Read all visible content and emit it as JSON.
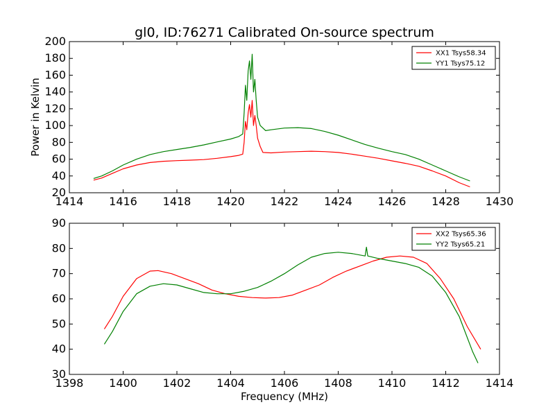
{
  "title": "gl0, ID:76271 Calibrated On-source spectrum",
  "colors": {
    "xx": "#ff0000",
    "yy": "#008000"
  },
  "chart_data": [
    {
      "type": "line",
      "title": "gl0, ID:76271 Calibrated On-source spectrum",
      "xlabel": "",
      "ylabel": "Power in Kelvin",
      "xlim": [
        1414,
        1430
      ],
      "ylim": [
        20,
        200
      ],
      "xticks": [
        "1414",
        "1416",
        "1418",
        "1420",
        "1422",
        "1424",
        "1426",
        "1428",
        "1430"
      ],
      "yticks": [
        "20",
        "40",
        "60",
        "80",
        "100",
        "120",
        "140",
        "160",
        "180",
        "200"
      ],
      "legend_position": "top-right",
      "series": [
        {
          "name": "XX1 Tsys58.34",
          "color": "#ff0000",
          "points": [
            [
              1414.9,
              35
            ],
            [
              1415.2,
              37.5
            ],
            [
              1415.6,
              43
            ],
            [
              1416.0,
              48.5
            ],
            [
              1416.5,
              53
            ],
            [
              1417.0,
              56
            ],
            [
              1417.5,
              57.5
            ],
            [
              1418.0,
              58.2
            ],
            [
              1418.5,
              58.8
            ],
            [
              1419.0,
              59.5
            ],
            [
              1419.5,
              61
            ],
            [
              1420.0,
              63
            ],
            [
              1420.3,
              64.5
            ],
            [
              1420.45,
              66
            ],
            [
              1420.5,
              80
            ],
            [
              1420.55,
              105
            ],
            [
              1420.6,
              95
            ],
            [
              1420.65,
              115
            ],
            [
              1420.7,
              125
            ],
            [
              1420.75,
              110
            ],
            [
              1420.8,
              130
            ],
            [
              1420.85,
              100
            ],
            [
              1420.9,
              112
            ],
            [
              1420.95,
              100
            ],
            [
              1421.0,
              85
            ],
            [
              1421.1,
              75
            ],
            [
              1421.2,
              68
            ],
            [
              1421.5,
              67.5
            ],
            [
              1422.0,
              68.5
            ],
            [
              1422.5,
              69
            ],
            [
              1423.0,
              69.5
            ],
            [
              1423.5,
              69
            ],
            [
              1424.0,
              68
            ],
            [
              1424.5,
              66
            ],
            [
              1425.0,
              63.5
            ],
            [
              1425.5,
              61
            ],
            [
              1426.0,
              58
            ],
            [
              1426.5,
              55
            ],
            [
              1427.0,
              51.5
            ],
            [
              1427.5,
              46
            ],
            [
              1428.0,
              40
            ],
            [
              1428.5,
              32
            ],
            [
              1428.9,
              27
            ]
          ]
        },
        {
          "name": "YY1 Tsys75.12",
          "color": "#008000",
          "points": [
            [
              1414.9,
              37
            ],
            [
              1415.2,
              40
            ],
            [
              1415.6,
              46
            ],
            [
              1416.0,
              53
            ],
            [
              1416.5,
              60
            ],
            [
              1417.0,
              65.5
            ],
            [
              1417.5,
              69
            ],
            [
              1418.0,
              71.5
            ],
            [
              1418.5,
              74
            ],
            [
              1419.0,
              77
            ],
            [
              1419.5,
              80.5
            ],
            [
              1420.0,
              84
            ],
            [
              1420.3,
              87
            ],
            [
              1420.45,
              90
            ],
            [
              1420.5,
              115
            ],
            [
              1420.55,
              148
            ],
            [
              1420.6,
              130
            ],
            [
              1420.65,
              165
            ],
            [
              1420.7,
              177
            ],
            [
              1420.75,
              155
            ],
            [
              1420.8,
              185
            ],
            [
              1420.85,
              140
            ],
            [
              1420.9,
              155
            ],
            [
              1420.95,
              130
            ],
            [
              1421.0,
              110
            ],
            [
              1421.1,
              100
            ],
            [
              1421.3,
              94
            ],
            [
              1421.5,
              95
            ],
            [
              1422.0,
              97
            ],
            [
              1422.5,
              97.5
            ],
            [
              1423.0,
              96.5
            ],
            [
              1423.5,
              93
            ],
            [
              1424.0,
              88.5
            ],
            [
              1424.5,
              83
            ],
            [
              1425.0,
              77.5
            ],
            [
              1425.5,
              73
            ],
            [
              1426.0,
              69
            ],
            [
              1426.5,
              65.5
            ],
            [
              1427.0,
              60
            ],
            [
              1427.5,
              53
            ],
            [
              1428.0,
              46
            ],
            [
              1428.5,
              39
            ],
            [
              1428.9,
              34
            ]
          ]
        }
      ]
    },
    {
      "type": "line",
      "title": "",
      "xlabel": "Frequency (MHz)",
      "ylabel": "",
      "xlim": [
        1398,
        1414
      ],
      "ylim": [
        30,
        90
      ],
      "xticks": [
        "1398",
        "1400",
        "1402",
        "1404",
        "1406",
        "1408",
        "1410",
        "1412",
        "1414"
      ],
      "yticks": [
        "30",
        "40",
        "50",
        "60",
        "70",
        "80",
        "90"
      ],
      "legend_position": "top-right",
      "series": [
        {
          "name": "XX2 Tsys65.36",
          "color": "#ff0000",
          "points": [
            [
              1399.3,
              48
            ],
            [
              1399.6,
              53
            ],
            [
              1400.0,
              61
            ],
            [
              1400.5,
              68
            ],
            [
              1401.0,
              71
            ],
            [
              1401.3,
              71.2
            ],
            [
              1401.8,
              70
            ],
            [
              1402.3,
              68
            ],
            [
              1402.8,
              66
            ],
            [
              1403.3,
              63.5
            ],
            [
              1403.8,
              62
            ],
            [
              1404.3,
              61
            ],
            [
              1404.8,
              60.5
            ],
            [
              1405.3,
              60.3
            ],
            [
              1405.8,
              60.5
            ],
            [
              1406.3,
              61.5
            ],
            [
              1406.8,
              63.5
            ],
            [
              1407.3,
              65.5
            ],
            [
              1407.8,
              68.5
            ],
            [
              1408.3,
              71
            ],
            [
              1408.8,
              73
            ],
            [
              1409.3,
              75
            ],
            [
              1409.8,
              76.5
            ],
            [
              1410.3,
              77
            ],
            [
              1410.8,
              76.5
            ],
            [
              1411.3,
              74
            ],
            [
              1411.8,
              68
            ],
            [
              1412.3,
              60
            ],
            [
              1412.8,
              49
            ],
            [
              1413.3,
              40
            ]
          ]
        },
        {
          "name": "YY2 Tsys65.21",
          "color": "#008000",
          "points": [
            [
              1399.3,
              42
            ],
            [
              1399.6,
              47
            ],
            [
              1400.0,
              55
            ],
            [
              1400.5,
              62
            ],
            [
              1401.0,
              65
            ],
            [
              1401.5,
              66
            ],
            [
              1402.0,
              65.5
            ],
            [
              1402.5,
              64
            ],
            [
              1403.0,
              62.5
            ],
            [
              1403.5,
              62
            ],
            [
              1404.0,
              62
            ],
            [
              1404.5,
              63
            ],
            [
              1405.0,
              64.5
            ],
            [
              1405.5,
              67
            ],
            [
              1406.0,
              70
            ],
            [
              1406.5,
              73.5
            ],
            [
              1407.0,
              76.5
            ],
            [
              1407.5,
              78
            ],
            [
              1408.0,
              78.5
            ],
            [
              1408.5,
              78
            ],
            [
              1409.0,
              77
            ],
            [
              1409.05,
              80.5
            ],
            [
              1409.1,
              77
            ],
            [
              1409.5,
              76
            ],
            [
              1410.0,
              75
            ],
            [
              1410.5,
              74
            ],
            [
              1411.0,
              72.5
            ],
            [
              1411.5,
              69
            ],
            [
              1412.0,
              62.5
            ],
            [
              1412.5,
              53
            ],
            [
              1413.0,
              39
            ],
            [
              1413.2,
              34.5
            ]
          ]
        }
      ]
    }
  ]
}
